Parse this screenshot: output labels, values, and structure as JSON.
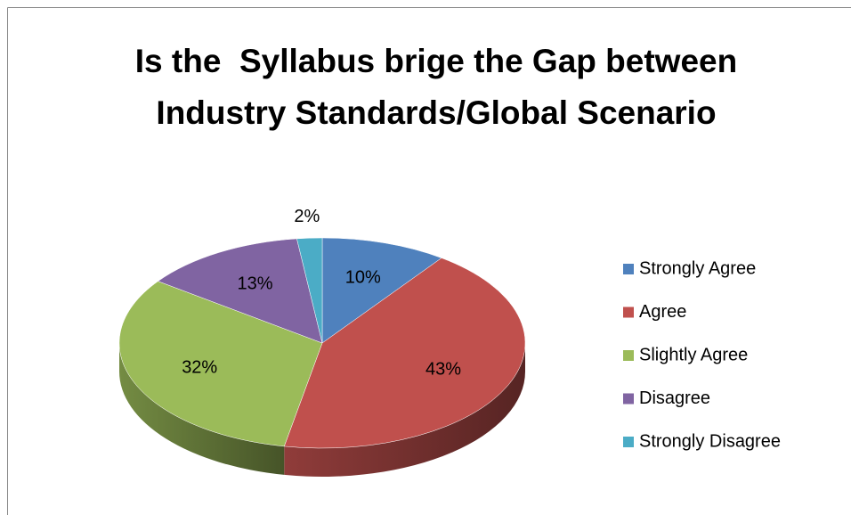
{
  "chart_data": {
    "type": "pie",
    "title": "Is the  Syllabus brige the Gap between Industry Standards/Global Scenario",
    "categories": [
      "Strongly Agree",
      "Agree",
      "Slightly Agree",
      "Disagree",
      "Strongly Disagree"
    ],
    "values": [
      10,
      43,
      32,
      13,
      2
    ],
    "value_labels": [
      "10%",
      "43%",
      "32%",
      "13%",
      "2%"
    ],
    "colors": [
      "#4f81bd",
      "#c0504d",
      "#9bbb59",
      "#8064a2",
      "#4bacc6"
    ],
    "legend": "right"
  }
}
